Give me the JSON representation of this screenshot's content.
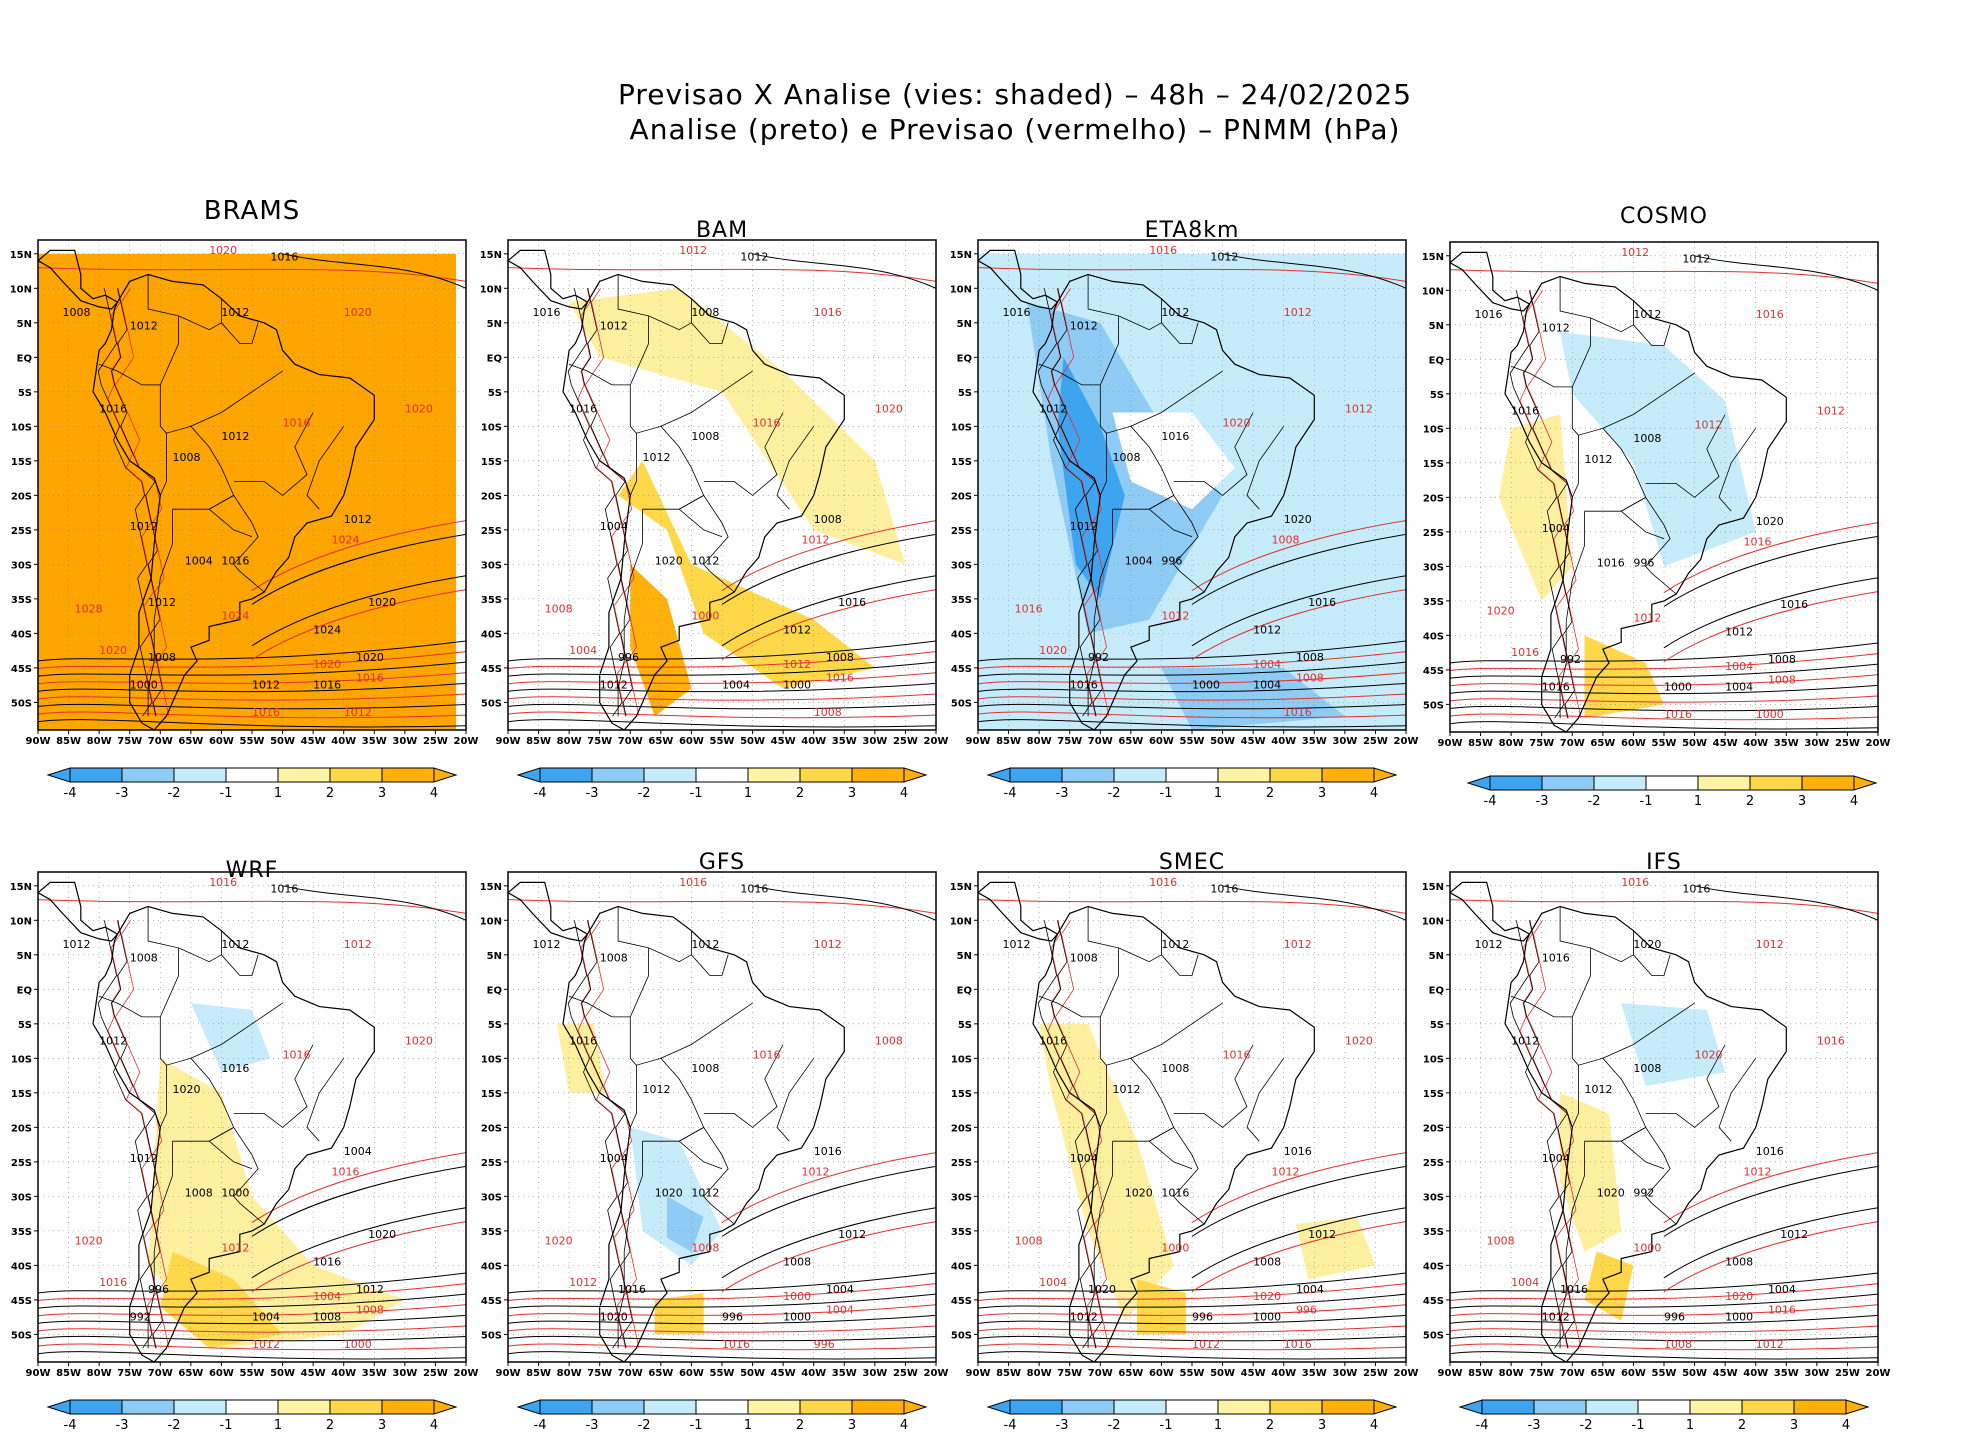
{
  "header": {
    "title_line1": "Previsao X Analise (vies: shaded) – 48h – 24/02/2025",
    "title_line2": "Analise (preto) e Previsao (vermelho) – PNMM (hPa)"
  },
  "axes": {
    "lat_labels": [
      "15N",
      "10N",
      "5N",
      "EQ",
      "5S",
      "10S",
      "15S",
      "20S",
      "25S",
      "30S",
      "35S",
      "40S",
      "45S",
      "50S"
    ],
    "lon_labels": [
      "90W",
      "85W",
      "80W",
      "75W",
      "70W",
      "65W",
      "60W",
      "55W",
      "50W",
      "45W",
      "40W",
      "35W",
      "30W",
      "25W",
      "20W"
    ]
  },
  "colorbar": {
    "labels": [
      "-4",
      "-3",
      "-2",
      "-1",
      "1",
      "2",
      "3",
      "4"
    ],
    "colors": [
      "#3da5f0",
      "#8ecbf5",
      "#c6ecfb",
      "#ffffff",
      "#fff4a3",
      "#ffd84a",
      "#ffb00a"
    ]
  },
  "colors": {
    "analysis_contour": "#000000",
    "forecast_contour": "#e03030",
    "grid": "#888888"
  },
  "panels": [
    {
      "id": "brams",
      "name": "BRAMS",
      "labels_k": [
        "1016",
        "1008",
        "1012",
        "1012",
        "1016",
        "1012",
        "1008",
        "1012",
        "1004",
        "1012",
        "1020",
        "1024",
        "1020",
        "1016",
        "1012",
        "1016",
        "1008",
        "1000",
        "1012"
      ],
      "labels_r": [
        "1020",
        "1020",
        "1016",
        "1020",
        "1024",
        "1028",
        "1020",
        "1024",
        "1016",
        "1020",
        "1012",
        "1016"
      ]
    },
    {
      "id": "bam",
      "name": "BAM",
      "labels_k": [
        "1012",
        "1016",
        "1012",
        "1008",
        "1016",
        "1008",
        "1012",
        "1004",
        "1020",
        "1008",
        "1016",
        "1012",
        "1008",
        "1000",
        "1004",
        "1012",
        "996",
        "1012"
      ],
      "labels_r": [
        "1012",
        "1016",
        "1016",
        "1020",
        "1012",
        "1008",
        "1004",
        "1000",
        "1016",
        "1012",
        "1008"
      ]
    },
    {
      "id": "eta8km",
      "name": "ETA8km",
      "labels_k": [
        "1012",
        "1016",
        "1012",
        "1012",
        "1012",
        "1016",
        "1008",
        "1012",
        "1004",
        "1020",
        "1016",
        "1012",
        "1008",
        "1004",
        "1000",
        "996",
        "992",
        "1016"
      ],
      "labels_r": [
        "1016",
        "1012",
        "1020",
        "1012",
        "1008",
        "1016",
        "1020",
        "1012",
        "1008",
        "1004",
        "1016"
      ]
    },
    {
      "id": "cosmo",
      "name": "COSMO",
      "labels_k": [
        "1012",
        "1016",
        "1012",
        "1012",
        "1016",
        "1008",
        "1012",
        "1004",
        "1016",
        "1020",
        "1016",
        "1012",
        "1008",
        "1004",
        "1000",
        "996",
        "992",
        "1016"
      ],
      "labels_r": [
        "1012",
        "1016",
        "1012",
        "1012",
        "1016",
        "1020",
        "1016",
        "1012",
        "1008",
        "1004",
        "1000",
        "1016"
      ]
    },
    {
      "id": "wrf",
      "name": "WRF",
      "labels_k": [
        "1016",
        "1012",
        "1008",
        "1012",
        "1012",
        "1016",
        "1020",
        "1012",
        "1008",
        "1004",
        "1020",
        "1016",
        "1012",
        "1008",
        "1004",
        "1000",
        "996",
        "992"
      ],
      "labels_r": [
        "1016",
        "1012",
        "1016",
        "1020",
        "1016",
        "1020",
        "1016",
        "1012",
        "1008",
        "1004",
        "1000",
        "1012"
      ]
    },
    {
      "id": "gfs",
      "name": "GFS",
      "labels_k": [
        "1016",
        "1012",
        "1008",
        "1012",
        "1016",
        "1008",
        "1012",
        "1004",
        "1020",
        "1016",
        "1012",
        "1008",
        "1004",
        "1000",
        "996",
        "1012",
        "1016",
        "1020"
      ],
      "labels_r": [
        "1016",
        "1012",
        "1016",
        "1008",
        "1012",
        "1020",
        "1012",
        "1008",
        "1004",
        "1000",
        "996",
        "1016"
      ]
    },
    {
      "id": "smec",
      "name": "SMEC",
      "labels_k": [
        "1016",
        "1012",
        "1008",
        "1012",
        "1016",
        "1008",
        "1012",
        "1004",
        "1020",
        "1016",
        "1012",
        "1008",
        "1004",
        "1000",
        "996",
        "1016",
        "1020",
        "1012"
      ],
      "labels_r": [
        "1016",
        "1012",
        "1016",
        "1020",
        "1012",
        "1008",
        "1004",
        "1000",
        "996",
        "1020",
        "1016",
        "1012"
      ]
    },
    {
      "id": "ifs",
      "name": "IFS",
      "labels_k": [
        "1016",
        "1012",
        "1016",
        "1020",
        "1012",
        "1008",
        "1012",
        "1004",
        "1020",
        "1016",
        "1012",
        "1008",
        "1004",
        "1000",
        "996",
        "992",
        "1016",
        "1012"
      ],
      "labels_r": [
        "1016",
        "1012",
        "1020",
        "1016",
        "1012",
        "1008",
        "1004",
        "1000",
        "1016",
        "1020",
        "1012",
        "1008"
      ]
    }
  ]
}
